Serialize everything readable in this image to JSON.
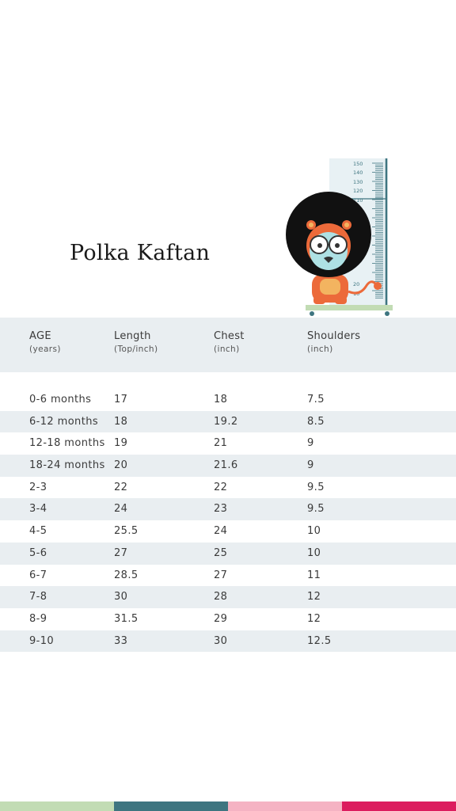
{
  "product_title": "Polka Kaftan",
  "ruler_ticks": [
    "150",
    "140",
    "130",
    "120",
    "110",
    "20",
    "10"
  ],
  "table": {
    "headers": [
      {
        "label": "AGE",
        "sub": "(years)"
      },
      {
        "label": "Length",
        "sub": "(Top/inch)"
      },
      {
        "label": "Chest",
        "sub": "(inch)"
      },
      {
        "label": "Shoulders",
        "sub": "(inch)"
      }
    ],
    "rows": [
      [
        "0-6 months",
        "17",
        "18",
        "7.5"
      ],
      [
        "6-12 months",
        "18",
        "19.2",
        "8.5"
      ],
      [
        "12-18 months",
        "19",
        "21",
        "9"
      ],
      [
        "18-24 months",
        "20",
        "21.6",
        "9"
      ],
      [
        "2-3",
        "22",
        "22",
        "9.5"
      ],
      [
        "3-4",
        "24",
        "23",
        "9.5"
      ],
      [
        "4-5",
        "25.5",
        "24",
        "10"
      ],
      [
        "5-6",
        "27",
        "25",
        "10"
      ],
      [
        "6-7",
        "28.5",
        "27",
        "11"
      ],
      [
        "7-8",
        "30",
        "28",
        "12"
      ],
      [
        "8-9",
        "31.5",
        "29",
        "12"
      ],
      [
        "9-10",
        "33",
        "30",
        "12.5"
      ]
    ]
  },
  "colors": {
    "band": "#e9eef1",
    "footer": [
      "#c2dcb4",
      "#3e7580",
      "#f5b3c3",
      "#dc1c5e"
    ]
  }
}
